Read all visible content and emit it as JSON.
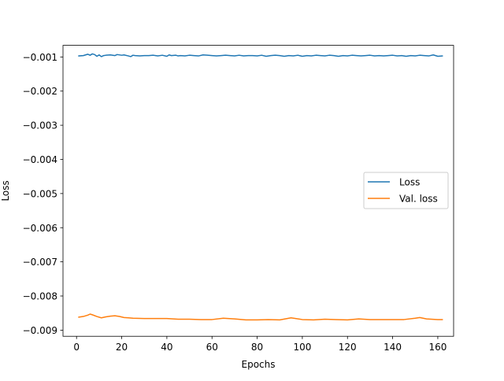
{
  "chart_data": {
    "type": "line",
    "title": "",
    "xlabel": "Epochs",
    "ylabel": "Loss",
    "xlim": [
      -6,
      167
    ],
    "ylim": [
      -0.00918,
      -0.00066
    ],
    "xticks": [
      0,
      20,
      40,
      60,
      80,
      100,
      120,
      140,
      160
    ],
    "xtick_labels": [
      "0",
      "20",
      "40",
      "60",
      "80",
      "100",
      "120",
      "140",
      "160"
    ],
    "yticks": [
      -0.001,
      -0.002,
      -0.003,
      -0.004,
      -0.005,
      -0.006,
      -0.007,
      -0.008,
      -0.009
    ],
    "ytick_labels": [
      "−0.001",
      "−0.002",
      "−0.003",
      "−0.004",
      "−0.005",
      "−0.006",
      "−0.007",
      "−0.008",
      "−0.009"
    ],
    "grid": false,
    "legend_position": "center-right",
    "series": [
      {
        "name": "Loss",
        "color": "#1f77b4",
        "x": [
          1,
          3,
          5,
          6,
          7,
          8,
          9,
          10,
          11,
          12,
          13,
          15,
          17,
          18,
          20,
          21,
          23,
          24,
          25,
          26,
          28,
          30,
          32,
          34,
          35,
          36,
          38,
          40,
          41,
          42,
          44,
          45,
          46,
          48,
          50,
          52,
          54,
          56,
          58,
          60,
          62,
          64,
          66,
          68,
          70,
          72,
          74,
          76,
          78,
          80,
          82,
          84,
          86,
          88,
          90,
          92,
          94,
          96,
          98,
          100,
          102,
          104,
          106,
          108,
          110,
          112,
          114,
          116,
          118,
          120,
          122,
          124,
          126,
          128,
          130,
          132,
          134,
          136,
          138,
          140,
          142,
          144,
          146,
          148,
          150,
          152,
          154,
          156,
          158,
          160,
          162
        ],
        "y": [
          -0.00097,
          -0.00096,
          -0.00092,
          -0.00095,
          -0.00091,
          -0.00093,
          -0.00098,
          -0.00094,
          -0.00099,
          -0.00096,
          -0.00095,
          -0.00094,
          -0.00096,
          -0.00093,
          -0.00095,
          -0.00094,
          -0.00097,
          -0.00099,
          -0.00095,
          -0.00096,
          -0.00097,
          -0.00096,
          -0.00096,
          -0.00095,
          -0.00096,
          -0.00097,
          -0.00095,
          -0.00098,
          -0.00094,
          -0.00096,
          -0.00095,
          -0.00097,
          -0.00096,
          -0.00097,
          -0.00095,
          -0.00096,
          -0.00097,
          -0.00094,
          -0.00095,
          -0.00096,
          -0.00097,
          -0.00096,
          -0.00095,
          -0.00096,
          -0.00097,
          -0.00095,
          -0.00097,
          -0.00096,
          -0.00096,
          -0.00097,
          -0.00095,
          -0.00098,
          -0.00096,
          -0.00095,
          -0.00096,
          -0.00098,
          -0.00096,
          -0.00097,
          -0.00095,
          -0.00098,
          -0.00096,
          -0.00097,
          -0.00095,
          -0.00096,
          -0.00097,
          -0.00095,
          -0.00096,
          -0.00098,
          -0.00096,
          -0.00097,
          -0.00095,
          -0.00096,
          -0.00097,
          -0.00096,
          -0.00095,
          -0.00097,
          -0.00096,
          -0.00097,
          -0.00096,
          -0.00095,
          -0.00097,
          -0.00096,
          -0.00098,
          -0.00096,
          -0.00097,
          -0.00095,
          -0.00096,
          -0.00097,
          -0.00094,
          -0.00098,
          -0.00097
        ]
      },
      {
        "name": "Val. loss",
        "color": "#ff7f0e",
        "x": [
          1,
          3,
          5,
          6,
          7,
          9,
          11,
          13,
          15,
          17,
          19,
          21,
          23,
          25,
          30,
          35,
          40,
          45,
          50,
          55,
          60,
          65,
          70,
          75,
          80,
          85,
          90,
          95,
          100,
          105,
          110,
          115,
          120,
          125,
          130,
          135,
          140,
          145,
          150,
          152,
          155,
          160,
          162
        ],
        "y": [
          -0.00862,
          -0.0086,
          -0.00856,
          -0.00853,
          -0.00855,
          -0.0086,
          -0.00864,
          -0.00861,
          -0.00859,
          -0.00858,
          -0.0086,
          -0.00863,
          -0.00864,
          -0.00865,
          -0.00866,
          -0.00866,
          -0.00866,
          -0.00868,
          -0.00868,
          -0.00869,
          -0.00869,
          -0.00865,
          -0.00867,
          -0.0087,
          -0.0087,
          -0.00869,
          -0.0087,
          -0.00864,
          -0.00869,
          -0.0087,
          -0.00868,
          -0.00869,
          -0.0087,
          -0.00867,
          -0.00869,
          -0.00869,
          -0.00869,
          -0.00869,
          -0.00865,
          -0.00863,
          -0.00867,
          -0.00869,
          -0.00869
        ]
      }
    ]
  }
}
